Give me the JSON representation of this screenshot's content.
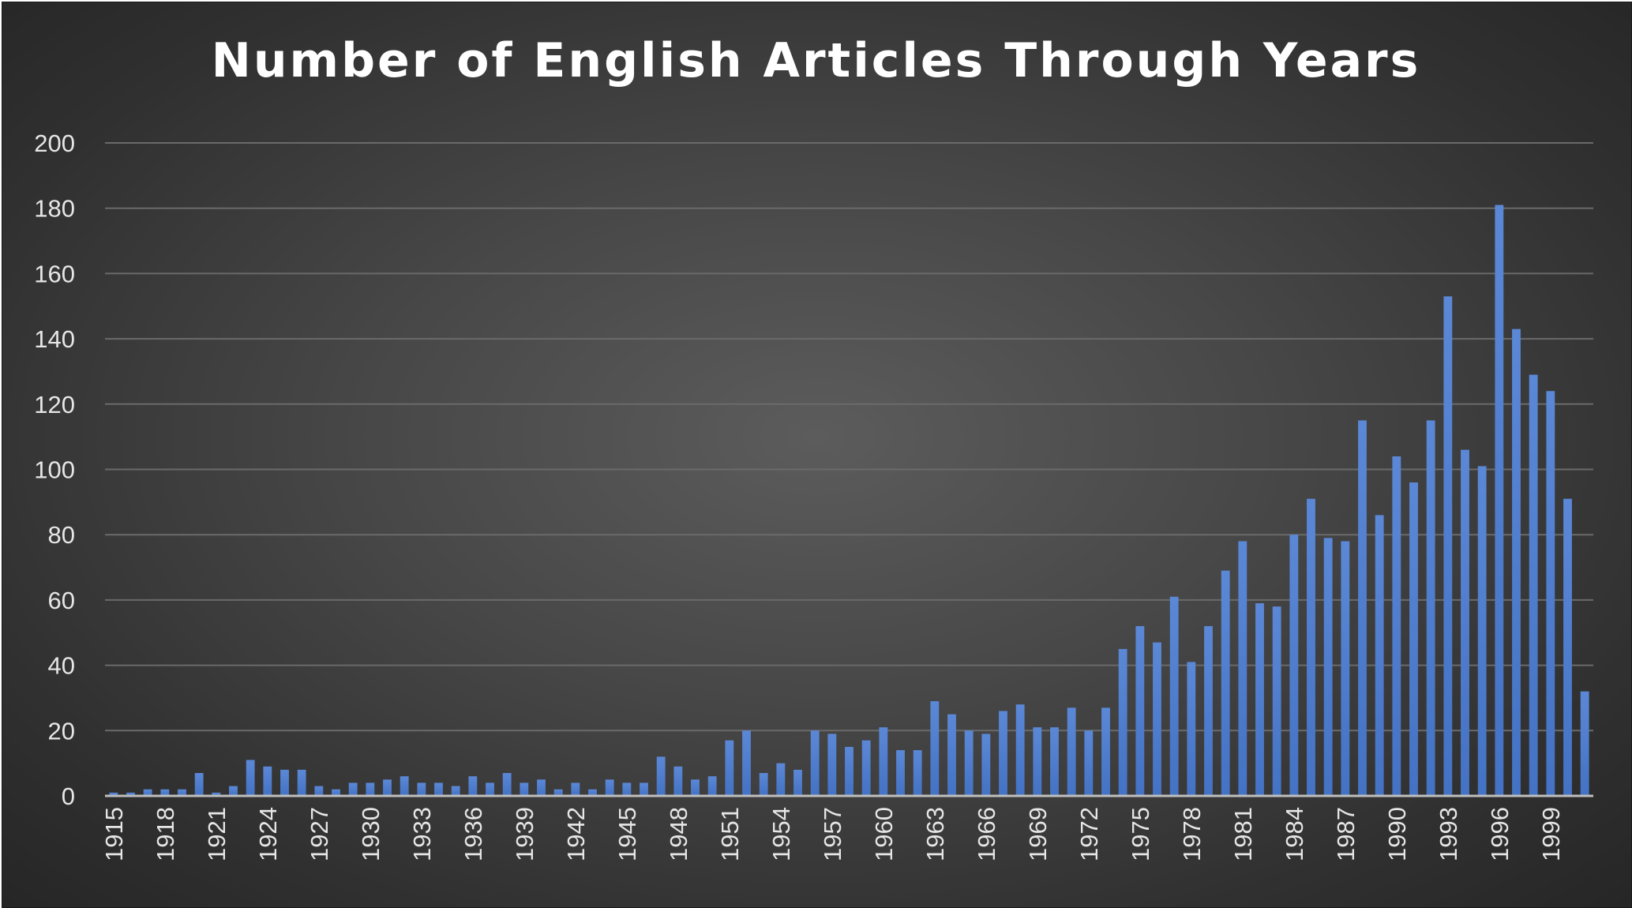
{
  "chart_data": {
    "type": "bar",
    "title": "Number of English Articles Through Years",
    "xlabel": "",
    "ylabel": "",
    "ylim": [
      0,
      200
    ],
    "yticks": [
      0,
      20,
      40,
      60,
      80,
      100,
      120,
      140,
      160,
      180,
      200
    ],
    "grid": true,
    "legend": "none",
    "colors": {
      "bar": "#4472c4",
      "bar_light": "#5b88d6",
      "grid": "#6a6a6a",
      "axis": "#bfbfbf",
      "text": "#e6e6e6"
    },
    "categories": [
      1915,
      1916,
      1917,
      1918,
      1919,
      1920,
      1921,
      1922,
      1923,
      1924,
      1925,
      1926,
      1927,
      1928,
      1929,
      1930,
      1931,
      1932,
      1933,
      1934,
      1935,
      1936,
      1937,
      1938,
      1939,
      1940,
      1941,
      1942,
      1943,
      1944,
      1945,
      1946,
      1947,
      1948,
      1949,
      1950,
      1951,
      1952,
      1953,
      1954,
      1955,
      1956,
      1957,
      1958,
      1959,
      1960,
      1961,
      1962,
      1963,
      1964,
      1965,
      1966,
      1967,
      1968,
      1969,
      1970,
      1971,
      1972,
      1973,
      1974,
      1975,
      1976,
      1977,
      1978,
      1979,
      1980,
      1981,
      1982,
      1983,
      1984,
      1985,
      1986,
      1987,
      1988,
      1989,
      1990,
      1991,
      1992,
      1993,
      1994,
      1995,
      1996,
      1997,
      1998,
      1999,
      2000,
      2001
    ],
    "tick_labels": [
      "1915",
      "1918",
      "1921",
      "1924",
      "1927",
      "1930",
      "1933",
      "1936",
      "1939",
      "1942",
      "1945",
      "1948",
      "1951",
      "1954",
      "1957",
      "1960",
      "1963",
      "1966",
      "1969",
      "1972",
      "1975",
      "1978",
      "1981",
      "1984",
      "1987",
      "1990",
      "1993",
      "1996",
      "1999"
    ],
    "values": [
      1,
      1,
      2,
      2,
      2,
      7,
      1,
      3,
      11,
      9,
      8,
      8,
      3,
      2,
      4,
      4,
      5,
      6,
      4,
      4,
      3,
      6,
      4,
      7,
      4,
      5,
      2,
      4,
      2,
      5,
      4,
      4,
      12,
      9,
      5,
      6,
      17,
      20,
      7,
      10,
      8,
      20,
      19,
      15,
      17,
      21,
      14,
      14,
      29,
      25,
      20,
      19,
      26,
      28,
      21,
      21,
      27,
      20,
      27,
      45,
      52,
      47,
      61,
      41,
      52,
      69,
      78,
      59,
      58,
      80,
      91,
      79,
      78,
      115,
      86,
      104,
      96,
      115,
      153,
      106,
      101,
      181,
      143,
      129,
      124,
      91,
      32
    ]
  }
}
